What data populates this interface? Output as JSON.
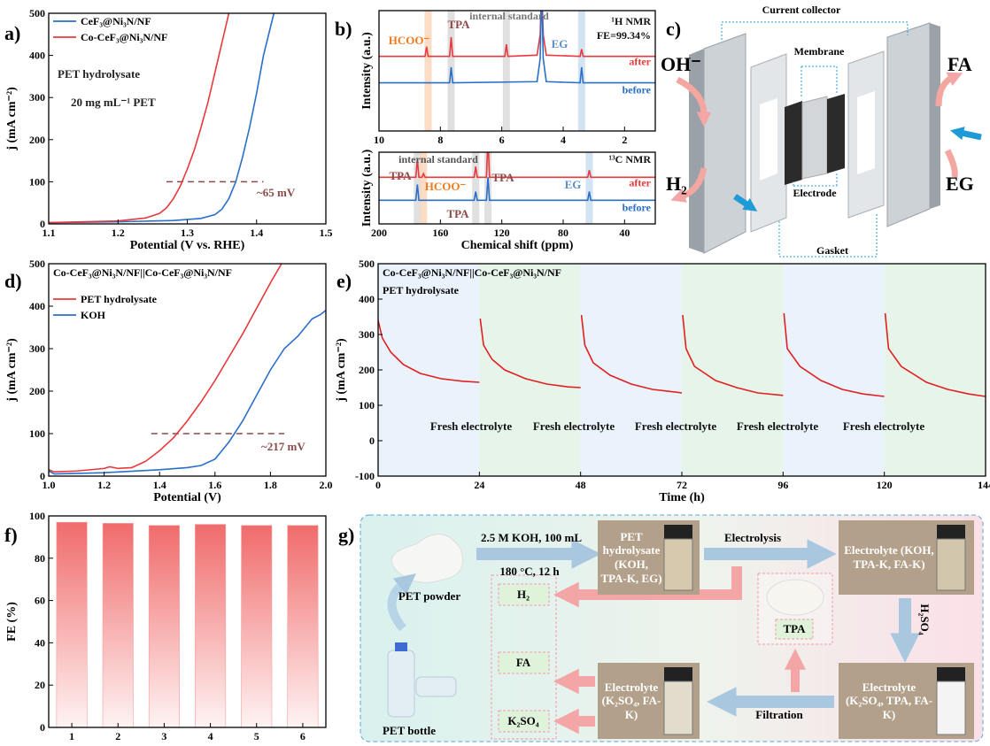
{
  "chart_data": [
    {
      "type": "line",
      "label": "a)",
      "xlabel": "Potential (V vs. RHE)",
      "ylabel": "j (mA cm⁻²)",
      "xlim": [
        1.1,
        1.5
      ],
      "xticks": [
        1.1,
        1.2,
        1.3,
        1.4,
        1.5
      ],
      "ylim": [
        0,
        500
      ],
      "yticks": [
        0,
        100,
        200,
        300,
        400,
        500
      ],
      "legend": "upper left",
      "series": [
        {
          "name": "CeF₃@Ni₃N/NF",
          "color": "#2a6fc9",
          "x": [
            1.1,
            1.2,
            1.28,
            1.32,
            1.34,
            1.35,
            1.36,
            1.37,
            1.38,
            1.39,
            1.4,
            1.41,
            1.425
          ],
          "values": [
            3,
            5,
            8,
            13,
            22,
            35,
            60,
            100,
            160,
            230,
            310,
            400,
            500
          ]
        },
        {
          "name": "Co-CeF₃@Ni₃N/NF",
          "color": "#e8393c",
          "x": [
            1.1,
            1.2,
            1.24,
            1.26,
            1.27,
            1.28,
            1.29,
            1.3,
            1.31,
            1.32,
            1.33,
            1.34,
            1.35,
            1.36
          ],
          "values": [
            3,
            7,
            14,
            25,
            38,
            60,
            90,
            130,
            175,
            230,
            290,
            360,
            430,
            500
          ]
        }
      ],
      "annotations": [
        "PET hydrolysate",
        "20 mg mL⁻¹ PET",
        "~65 mV"
      ],
      "reference_line": {
        "x": [
          1.27,
          1.41
        ],
        "y": 100,
        "color": "#8b4a4a"
      }
    },
    {
      "type": "line",
      "label": "b)",
      "ylabel": "Intensity (a.u.)",
      "xlim": [
        10,
        1
      ],
      "xticks": [
        10,
        8,
        6,
        4,
        2
      ],
      "ylim": [
        0,
        10
      ],
      "legend": "inline",
      "series": [
        {
          "name": "after",
          "color": "#e8393c",
          "x": [
            10,
            8.5,
            8.45,
            8.4,
            7.7,
            7.65,
            7.6,
            5.9,
            5.85,
            5.8,
            4.85,
            4.75,
            4.7,
            4.65,
            4.55,
            3.45,
            3.4,
            3.35,
            1
          ],
          "values": [
            6.2,
            6.2,
            7.0,
            6.2,
            6.2,
            7.8,
            6.2,
            6.2,
            7.2,
            6.2,
            6.3,
            8,
            12,
            8,
            6.3,
            6.2,
            6.8,
            6.2,
            6.2
          ]
        },
        {
          "name": "before",
          "color": "#2a6fc9",
          "x": [
            10,
            7.7,
            7.65,
            7.6,
            4.85,
            4.75,
            4.7,
            4.65,
            4.55,
            3.45,
            3.4,
            3.35,
            1
          ],
          "values": [
            4,
            4,
            5.3,
            4,
            4.1,
            6,
            12,
            6,
            4.1,
            4,
            5.3,
            4,
            4
          ]
        }
      ],
      "annotations": [
        "HCOO⁻",
        "TPA",
        "internal standard",
        "EG",
        "¹H NMR",
        "FE=99.34%"
      ],
      "highlights": [
        {
          "x": 8.4,
          "color": "#fbd3b5"
        },
        {
          "x": 7.65,
          "color": "#d8d8d8"
        },
        {
          "x": 5.85,
          "color": "#d8d8d8"
        },
        {
          "x": 3.4,
          "color": "#c9dcef"
        }
      ]
    },
    {
      "type": "line",
      "xlabel": "Chemical shift (ppm)",
      "ylabel": "Intensity (a.u.)",
      "xlim": [
        200,
        20
      ],
      "xticks": [
        200,
        160,
        120,
        80,
        40
      ],
      "ylim": [
        0,
        10
      ],
      "legend": "inline",
      "series": [
        {
          "name": "after",
          "color": "#e8393c",
          "x": [
            200,
            176,
            175,
            174,
            172,
            171,
            170,
            138,
            137,
            136,
            130,
            129,
            128,
            64,
            63,
            62,
            20
          ],
          "values": [
            6.5,
            6.5,
            9,
            6.5,
            6.5,
            7,
            6.5,
            6.5,
            8,
            6.5,
            6.5,
            12,
            6.5,
            6.5,
            7.5,
            6.5,
            6.5
          ]
        },
        {
          "name": "before",
          "color": "#2a6fc9",
          "x": [
            200,
            176,
            175,
            174,
            138,
            137,
            136,
            130,
            129,
            128,
            64,
            63,
            62,
            20
          ],
          "values": [
            3.3,
            3.3,
            5.5,
            3.3,
            3.3,
            4.5,
            3.3,
            3.3,
            6.5,
            3.3,
            3.3,
            4.5,
            3.3,
            3.3
          ]
        }
      ],
      "annotations": [
        "TPA",
        "HCOO⁻",
        "internal standard",
        "TPA",
        "TPA",
        "EG",
        "¹³C NMR"
      ],
      "highlights": [
        {
          "x": 175,
          "color": "#d8d8d8"
        },
        {
          "x": 171,
          "color": "#fbd3b5"
        },
        {
          "x": 137,
          "color": "#d8d8d8"
        },
        {
          "x": 129,
          "color": "#d8d8d8"
        },
        {
          "x": 63,
          "color": "#c9dcef"
        }
      ]
    },
    {
      "type": "line",
      "label": "d)",
      "title": "Co-CeF₃@Ni₃N/NF||Co-CeF₃@Ni₃N/NF",
      "xlabel": "Potential (V)",
      "ylabel": "j (mA cm⁻²)",
      "xlim": [
        1,
        2
      ],
      "xticks": [
        {
          "value": 1,
          "label": "1.0"
        },
        1.2,
        1.4,
        1.6,
        1.8,
        {
          "value": 2,
          "label": "2.0"
        }
      ],
      "ylim": [
        0,
        500
      ],
      "yticks": [
        0,
        100,
        200,
        300,
        400,
        500
      ],
      "legend": "upper left",
      "series": [
        {
          "name": "PET hydrolysate",
          "color": "#e8393c",
          "x": [
            1.0,
            1.02,
            1.1,
            1.2,
            1.22,
            1.25,
            1.3,
            1.35,
            1.4,
            1.45,
            1.5,
            1.55,
            1.6,
            1.65,
            1.7,
            1.75,
            1.8,
            1.84
          ],
          "values": [
            15,
            10,
            12,
            18,
            22,
            18,
            20,
            35,
            60,
            90,
            130,
            175,
            225,
            280,
            335,
            395,
            455,
            500
          ]
        },
        {
          "name": "KOH",
          "color": "#2a6fc9",
          "x": [
            1.0,
            1.02,
            1.2,
            1.4,
            1.5,
            1.55,
            1.6,
            1.65,
            1.7,
            1.75,
            1.8,
            1.85,
            1.9,
            1.95,
            1.98,
            2.0
          ],
          "values": [
            12,
            5,
            8,
            15,
            20,
            25,
            40,
            80,
            130,
            190,
            250,
            300,
            330,
            370,
            380,
            390
          ]
        }
      ],
      "annotations": [
        "~217 mV"
      ],
      "reference_line": {
        "x": [
          1.37,
          1.85
        ],
        "y": 100,
        "color": "#8b4a4a"
      }
    },
    {
      "type": "line",
      "label": "e)",
      "title": "Co-CeF₃@Ni₃N/NF||Co-CeF₃@Ni₃N/NF",
      "subtitle": "PET hydrolysate",
      "xlabel": "Time (h)",
      "ylabel": "j (mA cm⁻²)",
      "xlim": [
        0,
        144
      ],
      "xticks": [
        0,
        24,
        48,
        72,
        96,
        120,
        144
      ],
      "ylim": [
        -100,
        500
      ],
      "yticks": [
        -100,
        0,
        100,
        200,
        300,
        400,
        500
      ],
      "color": "#e02020",
      "x": [
        0,
        1,
        3,
        6,
        10,
        15,
        20,
        24,
        null,
        24.2,
        25,
        27,
        30,
        35,
        40,
        45,
        48,
        null,
        48.2,
        49,
        51,
        55,
        60,
        65,
        70,
        72,
        null,
        72.2,
        73,
        75,
        80,
        85,
        90,
        96,
        null,
        96.2,
        97,
        100,
        105,
        110,
        115,
        120,
        null,
        120.2,
        121,
        124,
        130,
        135,
        140,
        144
      ],
      "values": [
        340,
        290,
        250,
        215,
        190,
        175,
        168,
        165,
        null,
        345,
        270,
        230,
        200,
        175,
        160,
        152,
        150,
        null,
        355,
        270,
        220,
        185,
        160,
        145,
        138,
        135,
        null,
        355,
        260,
        210,
        170,
        150,
        135,
        128,
        null,
        360,
        260,
        210,
        170,
        145,
        132,
        125,
        null,
        360,
        260,
        210,
        165,
        145,
        132,
        125
      ],
      "bands": [
        {
          "x": [
            0,
            24
          ],
          "color": "#eaf2fb"
        },
        {
          "x": [
            24,
            48
          ],
          "color": "#e6f4ea"
        },
        {
          "x": [
            48,
            72
          ],
          "color": "#eaf2fb"
        },
        {
          "x": [
            72,
            96
          ],
          "color": "#e6f4ea"
        },
        {
          "x": [
            96,
            120
          ],
          "color": "#eaf2fb"
        },
        {
          "x": [
            120,
            144
          ],
          "color": "#e6f4ea"
        }
      ],
      "annotations": [
        "Fresh electrolyte",
        "Fresh electrolyte",
        "Fresh electrolyte",
        "Fresh electrolyte",
        "Fresh electrolyte"
      ]
    },
    {
      "type": "bar",
      "label": "f)",
      "ylabel": "FE (%)",
      "categories": [
        "1",
        "2",
        "3",
        "4",
        "5",
        "6"
      ],
      "values": [
        97,
        96.5,
        95.5,
        96,
        95.5,
        95.5
      ],
      "color": "#f06b6b",
      "ylim": [
        0,
        100
      ],
      "yticks": [
        0,
        20,
        40,
        60,
        80,
        100
      ]
    }
  ],
  "diagram_c": {
    "label": "c)",
    "current_collector": "Current collector",
    "membrane": "Membrane",
    "electrode": "Electrode",
    "gasket": "Gasket",
    "oh": "OH⁻",
    "fa": "FA",
    "h2": "H₂",
    "eg": "EG"
  },
  "diagram_g": {
    "label": "g)",
    "pet_powder": "PET powder",
    "pet_bottle": "PET bottle",
    "condition_1": "2.5 M KOH, 100 mL",
    "condition_2": "180 °C, 12 h",
    "box_hydrolysate": "PET hydrolysate (KOH, TPA-K, EG)",
    "electrolysis": "Electrolysis",
    "box_electrolyte_1": "Electrolyte (KOH, TPA-K, FA-K)",
    "acid": "H₂SO₄",
    "box_electrolyte_2": "Electrolyte (K₂SO₄, TPA, FA-K)",
    "filtration": "Filtration",
    "box_electrolyte_3": "Electrolyte (K₂SO₄, FA-K)",
    "tpa": "TPA",
    "product_h2": "H₂",
    "product_fa": "FA",
    "product_k2so4": "K₂SO₄"
  }
}
